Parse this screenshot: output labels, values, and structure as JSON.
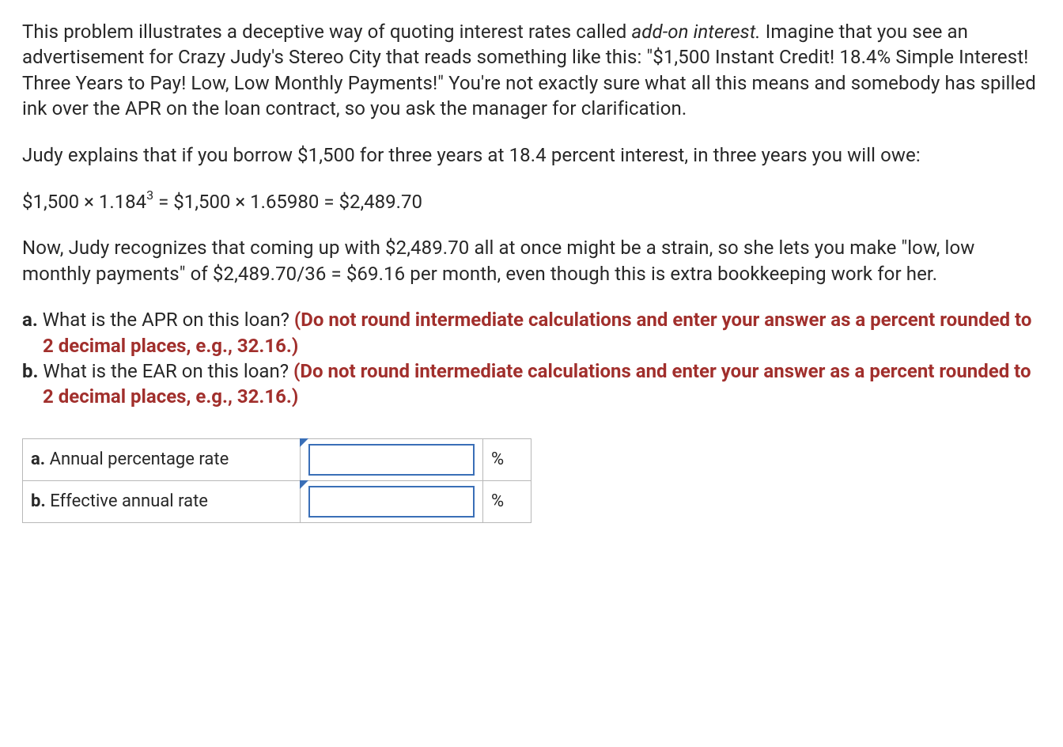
{
  "para1_a": "This problem illustrates a deceptive way of quoting interest rates called ",
  "para1_em": "add-on interest.",
  "para1_b": " Imagine that you see an advertisement for Crazy Judy's Stereo City that reads something like this: \"$1,500 Instant Credit! 18.4% Simple Interest! Three Years to Pay! Low, Low Monthly Payments!\" You're not exactly sure what all this means and somebody has spilled ink over the APR on the loan contract, so you ask the manager for clarification.",
  "para2": "Judy explains that if you borrow $1,500 for three years at 18.4 percent interest, in three years you will owe:",
  "equation_left": "$1,500 × 1.184",
  "equation_sup": "3",
  "equation_right": " = $1,500 × 1.65980 = $2,489.70",
  "para3": "Now, Judy recognizes that coming up with $2,489.70 all at once might be a strain, so she lets you make \"low, low monthly payments\" of $2,489.70/36 = $69.16 per month, even though this is extra bookkeeping work for her.",
  "qa_letter": "a.",
  "qa_text": " What is the APR on this loan? ",
  "qa_red": "(Do not round intermediate calculations and enter your answer as a percent rounded to 2 decimal places, e.g., 32.16.)",
  "qb_letter": "b.",
  "qb_text": " What is the EAR on this loan? ",
  "qb_red": "(Do not round intermediate calculations and enter your answer as a percent rounded to 2 decimal places, e.g., 32.16.)",
  "table": {
    "row_a_letter": "a.",
    "row_a_label": " Annual percentage rate",
    "row_b_letter": "b.",
    "row_b_label": " Effective annual rate",
    "unit": "%"
  },
  "colors": {
    "text": "#272727",
    "red": "#a12f2c",
    "input_border": "#3a6fb7",
    "cell_border": "#b8b8b8"
  }
}
